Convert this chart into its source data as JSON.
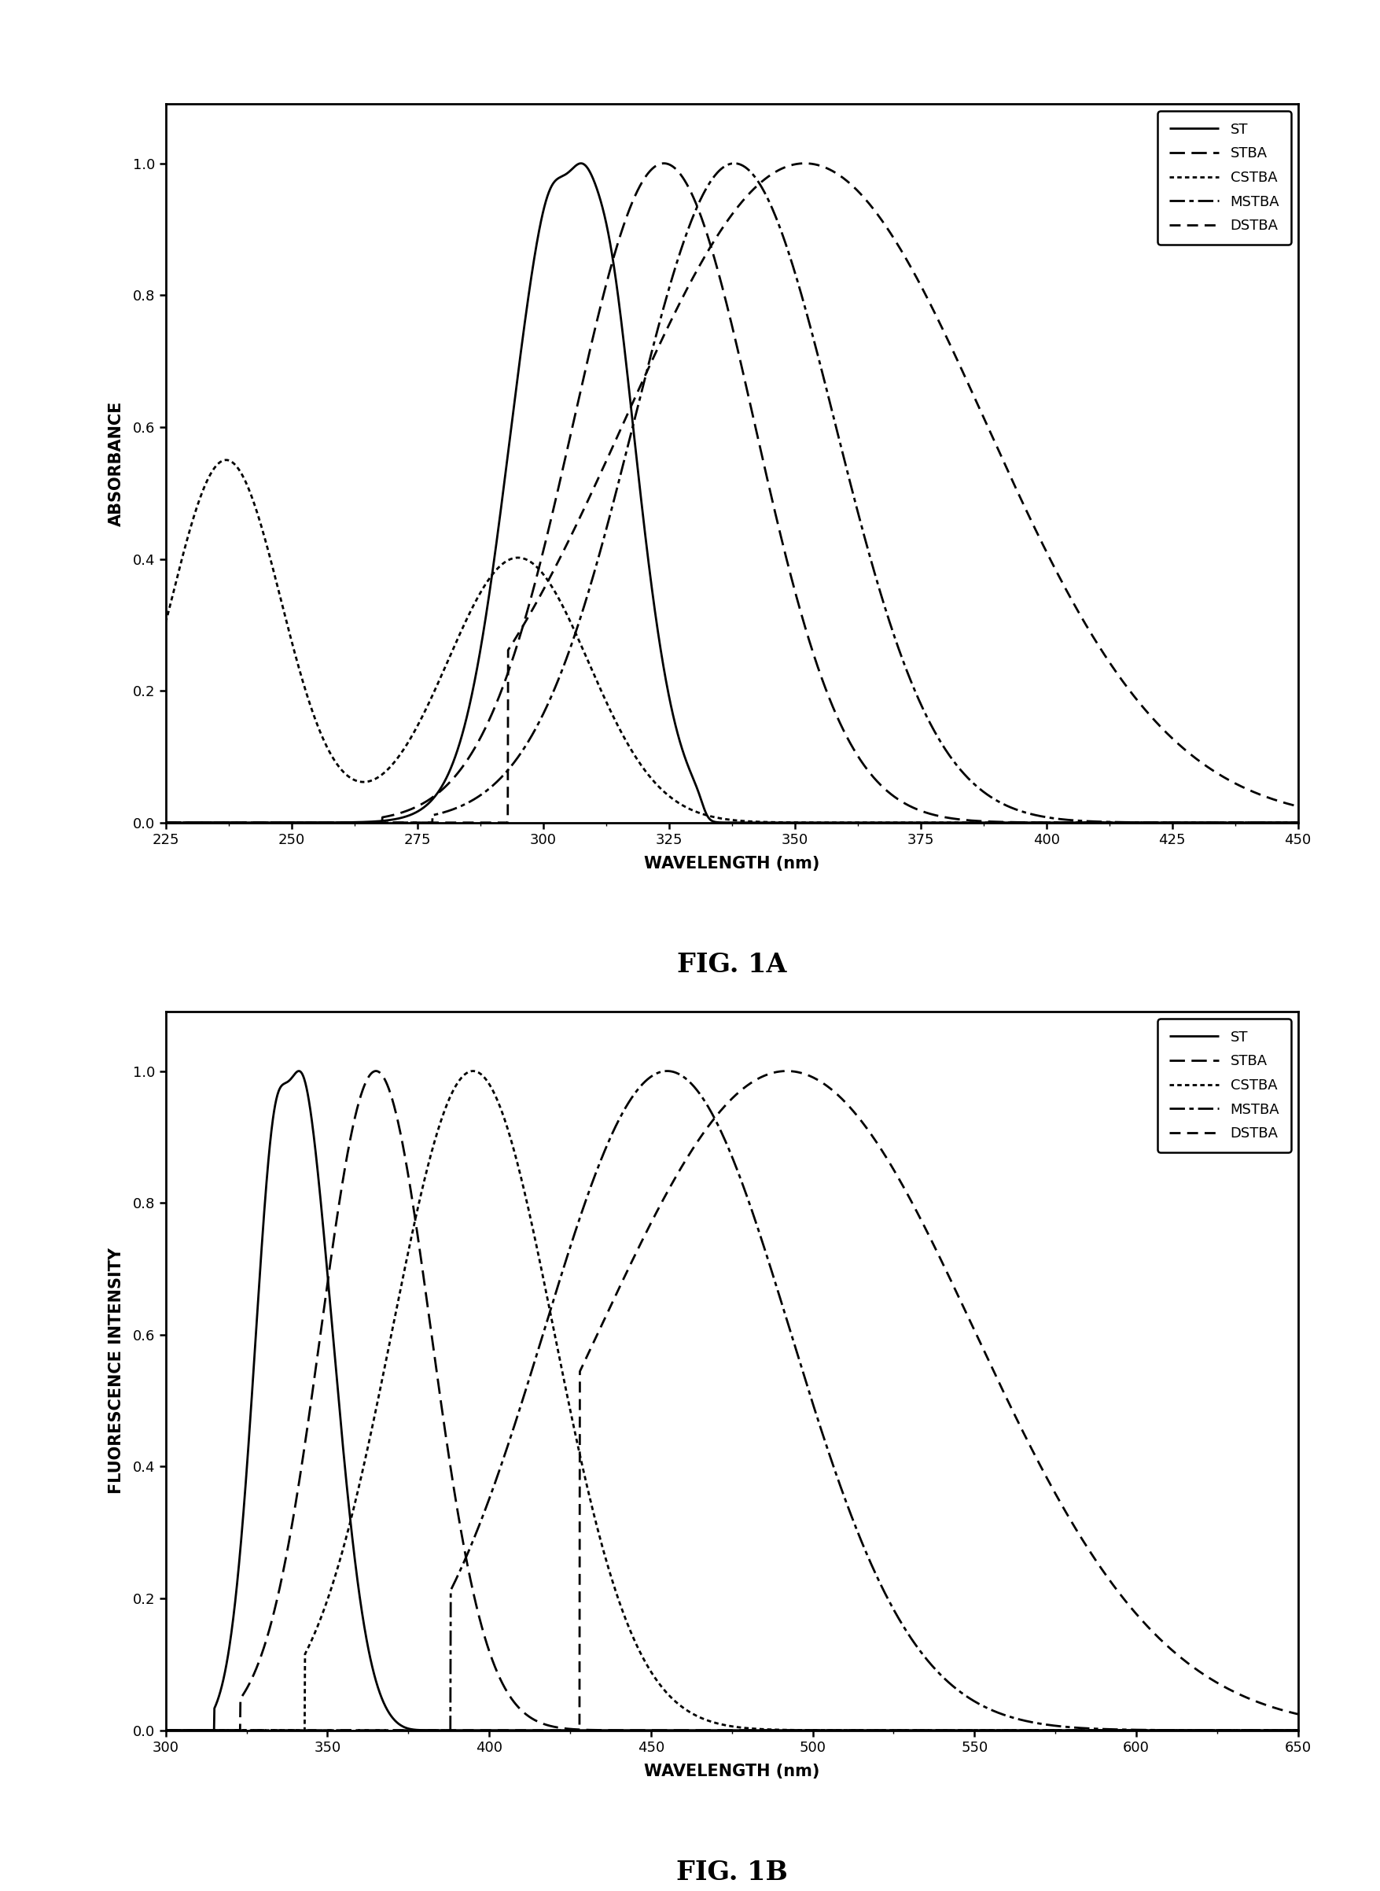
{
  "fig1a": {
    "title": "FIG. 1A",
    "xlabel": "WAVELENGTH (nm)",
    "ylabel": "ABSORBANCE",
    "xlim": [
      225,
      450
    ],
    "ylim": [
      0.0,
      1.09
    ],
    "xticks": [
      225,
      250,
      275,
      300,
      325,
      350,
      375,
      400,
      425,
      450
    ],
    "yticks": [
      0.0,
      0.2,
      0.4,
      0.6,
      0.8,
      1.0
    ],
    "legend_labels": [
      "ST",
      "STBA",
      "CSTBA",
      "MSTBA",
      "DSTBA"
    ]
  },
  "fig1b": {
    "title": "FIG. 1B",
    "xlabel": "WAVELENGTH (nm)",
    "ylabel": "FLUORESCENCE INTENSITY",
    "xlim": [
      300,
      650
    ],
    "ylim": [
      0.0,
      1.09
    ],
    "xticks": [
      300,
      350,
      400,
      450,
      500,
      550,
      600,
      650
    ],
    "yticks": [
      0.0,
      0.2,
      0.4,
      0.6,
      0.8,
      1.0
    ],
    "legend_labels": [
      "ST",
      "STBA",
      "CSTBA",
      "MSTBA",
      "DSTBA"
    ]
  },
  "line_color": "black",
  "background_color": "white"
}
